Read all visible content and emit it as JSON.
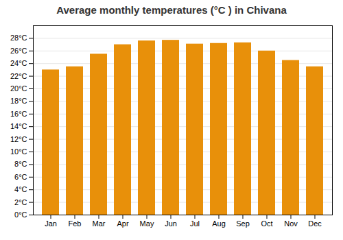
{
  "chart_data": {
    "type": "bar",
    "title": "Average monthly temperatures (°C ) in Chivana",
    "categories": [
      "Jan",
      "Feb",
      "Mar",
      "Apr",
      "May",
      "Jun",
      "Jul",
      "Aug",
      "Sep",
      "Oct",
      "Nov",
      "Dec"
    ],
    "values": [
      23.0,
      23.5,
      25.5,
      27.0,
      27.6,
      27.7,
      27.1,
      27.2,
      27.3,
      26.0,
      24.5,
      23.5
    ],
    "color": "#E8900A",
    "ylim": [
      0,
      30
    ],
    "yticks": [
      {
        "value": 0,
        "label": "0°C"
      },
      {
        "value": 2,
        "label": "2°C"
      },
      {
        "value": 4,
        "label": "4°C"
      },
      {
        "value": 6,
        "label": "6°C"
      },
      {
        "value": 8,
        "label": "8°C"
      },
      {
        "value": 10,
        "label": "10°C"
      },
      {
        "value": 12,
        "label": "12°C"
      },
      {
        "value": 14,
        "label": "14°C"
      },
      {
        "value": 16,
        "label": "16°C"
      },
      {
        "value": 18,
        "label": "18°C"
      },
      {
        "value": 20,
        "label": "20°C"
      },
      {
        "value": 22,
        "label": "22°C"
      },
      {
        "value": 24,
        "label": "24°C"
      },
      {
        "value": 26,
        "label": "26°C"
      },
      {
        "value": 28,
        "label": "28°C"
      }
    ],
    "grid": true
  }
}
